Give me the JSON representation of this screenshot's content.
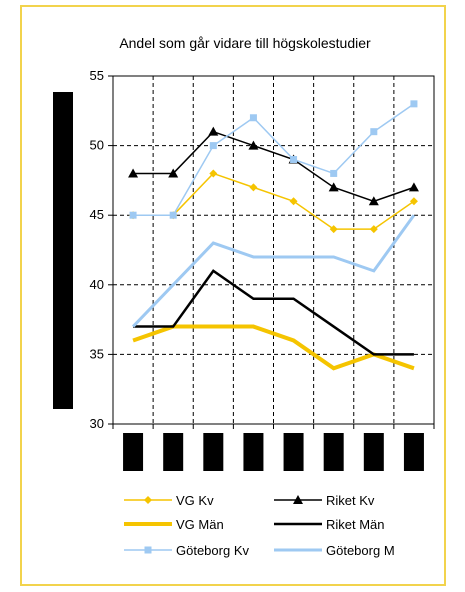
{
  "chart_data": {
    "type": "line",
    "title": "Andel som går vidare till högskolestudier",
    "ylim": [
      30,
      55
    ],
    "yticks": [
      30,
      35,
      40,
      45,
      50,
      55
    ],
    "xlabel": "",
    "ylabel": "",
    "grid": true,
    "legend_position": "bottom",
    "categories_count": 8,
    "series": [
      {
        "name": "VG Kv",
        "values": [
          45,
          45,
          48,
          47,
          46,
          44,
          44,
          46
        ],
        "color": "#f5c400",
        "width": 1.5,
        "marker": "diamond"
      },
      {
        "name": "Riket Kv",
        "values": [
          48,
          48,
          51,
          50,
          49,
          47,
          46,
          47
        ],
        "color": "#000000",
        "width": 1.5,
        "marker": "triangle"
      },
      {
        "name": "VG Män",
        "values": [
          36,
          37,
          37,
          37,
          36,
          34,
          35,
          34
        ],
        "color": "#f5c400",
        "width": 4,
        "marker": "none"
      },
      {
        "name": "Riket Män",
        "values": [
          37,
          37,
          41,
          39,
          39,
          37,
          35,
          35
        ],
        "color": "#000000",
        "width": 2.5,
        "marker": "none"
      },
      {
        "name": "Göteborg Kv",
        "values": [
          45,
          45,
          50,
          52,
          49,
          48,
          51,
          53
        ],
        "color": "#9ec9f2",
        "width": 1.5,
        "marker": "square"
      },
      {
        "name": "Göteborg M",
        "values": [
          37,
          40,
          43,
          42,
          42,
          42,
          41,
          45
        ],
        "color": "#9ec9f2",
        "width": 3,
        "marker": "none"
      }
    ]
  }
}
